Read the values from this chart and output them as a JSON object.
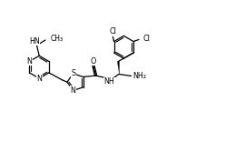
{
  "bg_color": "#ffffff",
  "line_color": "#000000",
  "text_color": "#000000",
  "lw": 0.9,
  "fs": 5.8,
  "xlim": [
    0,
    10
  ],
  "ylim": [
    0,
    5.78
  ],
  "inner_off": 0.06
}
